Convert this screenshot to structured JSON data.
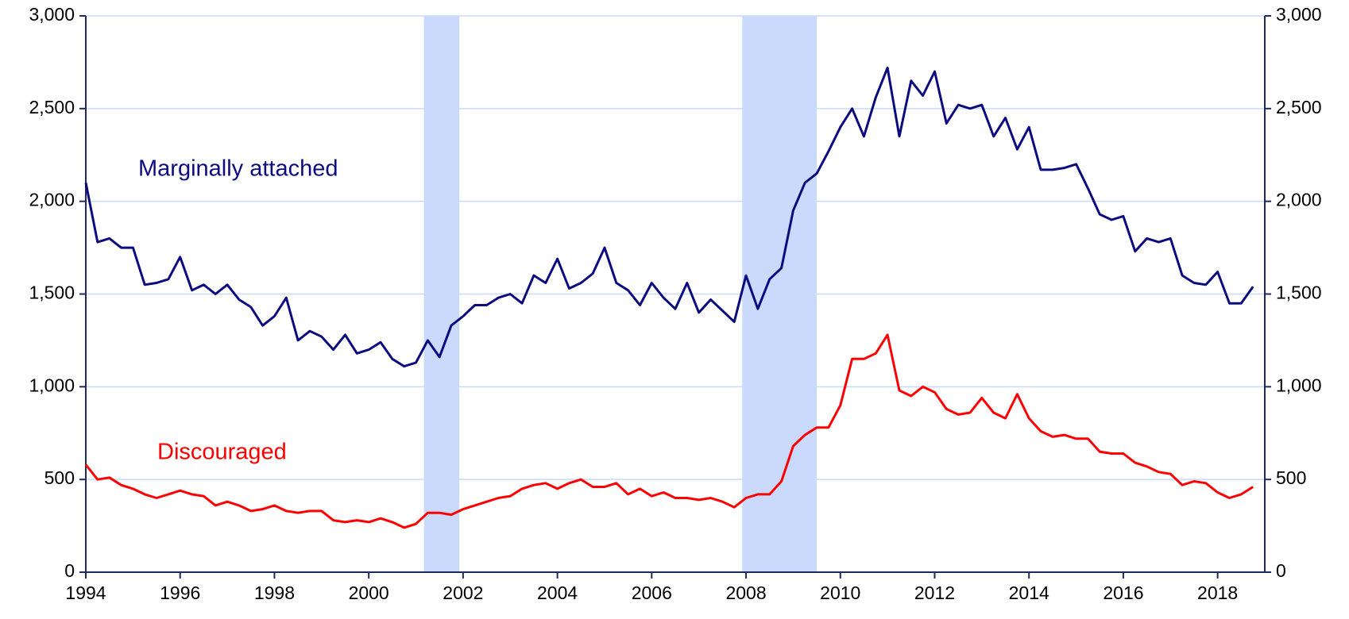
{
  "chart_data": {
    "type": "line",
    "annotations": [
      {
        "text": "Marginally attached",
        "color": "#0b0b7f"
      },
      {
        "text": "Discouraged",
        "color": "#ff0000"
      }
    ],
    "shaded_periods": [
      [
        2001.17,
        2001.92
      ],
      [
        2007.92,
        2009.5
      ]
    ],
    "shade_color": "#c9dafc",
    "x": [
      1994,
      1994.25,
      1994.5,
      1994.75,
      1995,
      1995.25,
      1995.5,
      1995.75,
      1996,
      1996.25,
      1996.5,
      1996.75,
      1997,
      1997.25,
      1997.5,
      1997.75,
      1998,
      1998.25,
      1998.5,
      1998.75,
      1999,
      1999.25,
      1999.5,
      1999.75,
      2000,
      2000.25,
      2000.5,
      2000.75,
      2001,
      2001.25,
      2001.5,
      2001.75,
      2002,
      2002.25,
      2002.5,
      2002.75,
      2003,
      2003.25,
      2003.5,
      2003.75,
      2004,
      2004.25,
      2004.5,
      2004.75,
      2005,
      2005.25,
      2005.5,
      2005.75,
      2006,
      2006.25,
      2006.5,
      2006.75,
      2007,
      2007.25,
      2007.5,
      2007.75,
      2008,
      2008.25,
      2008.5,
      2008.75,
      2009,
      2009.25,
      2009.5,
      2009.75,
      2010,
      2010.25,
      2010.5,
      2010.75,
      2011,
      2011.25,
      2011.5,
      2011.75,
      2012,
      2012.25,
      2012.5,
      2012.75,
      2013,
      2013.25,
      2013.5,
      2013.75,
      2014,
      2014.25,
      2014.5,
      2014.75,
      2015,
      2015.25,
      2015.5,
      2015.75,
      2016,
      2016.25,
      2016.5,
      2016.75,
      2017,
      2017.25,
      2017.5,
      2017.75,
      2018,
      2018.25,
      2018.5,
      2018.75
    ],
    "series": [
      {
        "name": "Marginally attached",
        "color": "#0b0b7f",
        "values": [
          2100,
          1780,
          1800,
          1750,
          1750,
          1550,
          1560,
          1580,
          1700,
          1520,
          1550,
          1500,
          1550,
          1470,
          1430,
          1330,
          1380,
          1480,
          1250,
          1300,
          1270,
          1200,
          1280,
          1180,
          1200,
          1240,
          1150,
          1110,
          1130,
          1250,
          1160,
          1330,
          1380,
          1440,
          1440,
          1480,
          1500,
          1450,
          1600,
          1560,
          1690,
          1530,
          1560,
          1610,
          1750,
          1560,
          1520,
          1440,
          1560,
          1480,
          1420,
          1560,
          1400,
          1470,
          1410,
          1350,
          1600,
          1420,
          1580,
          1640,
          1950,
          2100,
          2150,
          2270,
          2400,
          2500,
          2350,
          2560,
          2720,
          2350,
          2650,
          2570,
          2700,
          2420,
          2520,
          2500,
          2520,
          2350,
          2450,
          2280,
          2400,
          2170,
          2170,
          2180,
          2200,
          2070,
          1930,
          1900,
          1920,
          1730,
          1800,
          1780,
          1800,
          1600,
          1560,
          1550,
          1620,
          1450,
          1450,
          1540
        ]
      },
      {
        "name": "Discouraged",
        "color": "#ff0000",
        "values": [
          580,
          500,
          510,
          470,
          450,
          420,
          400,
          420,
          440,
          420,
          410,
          360,
          380,
          360,
          330,
          340,
          360,
          330,
          320,
          330,
          330,
          280,
          270,
          280,
          270,
          290,
          270,
          240,
          260,
          320,
          320,
          310,
          340,
          360,
          380,
          400,
          410,
          450,
          470,
          480,
          450,
          480,
          500,
          460,
          460,
          480,
          420,
          450,
          410,
          430,
          400,
          400,
          390,
          400,
          380,
          350,
          400,
          420,
          420,
          490,
          680,
          740,
          780,
          780,
          900,
          1150,
          1150,
          1180,
          1280,
          980,
          950,
          1000,
          970,
          880,
          850,
          860,
          940,
          860,
          830,
          960,
          830,
          760,
          730,
          740,
          720,
          720,
          650,
          640,
          640,
          590,
          570,
          540,
          530,
          470,
          490,
          480,
          430,
          400,
          420,
          460
        ]
      }
    ],
    "xlim": [
      1994,
      2019
    ],
    "xticks": [
      1994,
      1996,
      1998,
      2000,
      2002,
      2004,
      2006,
      2008,
      2010,
      2012,
      2014,
      2016,
      2018
    ],
    "ylim": [
      0,
      3000
    ],
    "yticks": [
      0,
      500,
      {
        "value": 1000,
        "label": "1,000"
      },
      {
        "value": 1500,
        "label": "1,500"
      },
      {
        "value": 2000,
        "label": "2,000"
      },
      {
        "value": 2500,
        "label": "2,500"
      },
      {
        "value": 3000,
        "label": "3,000"
      }
    ],
    "y2lim": [
      0,
      3000
    ],
    "y2ticks": [
      0,
      500,
      {
        "value": 1000,
        "label": "1,000"
      },
      {
        "value": 1500,
        "label": "1,500"
      },
      {
        "value": 2000,
        "label": "2,000"
      },
      {
        "value": 2500,
        "label": "2,500"
      },
      {
        "value": 3000,
        "label": "3,000"
      }
    ],
    "grid": true,
    "grid_color": "#c9dafc",
    "axis_color": "#1f2a5c"
  }
}
